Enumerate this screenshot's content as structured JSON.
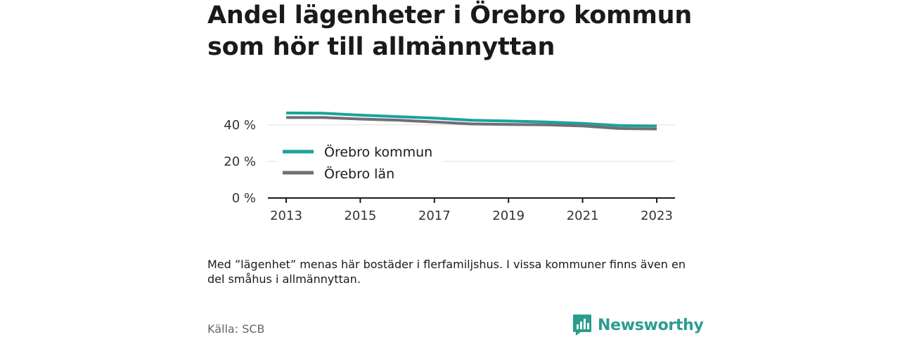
{
  "title": "Andel lägenheter i Örebro kommun som hör till allmännyttan",
  "note": "Med ”lägenhet” menas här bostäder i flerfamiljshus. I vissa kommuner finns även en del småhus i allmännyttan.",
  "source": "Källa: SCB",
  "logo": {
    "text": "Newsworthy",
    "icon": "bar-chart-speech-bubble-icon"
  },
  "colors": {
    "kommun": "#1aa39a",
    "lan": "#6e6e76",
    "grid": "#dddddd",
    "axis": "#1a1a1a",
    "logo": "#2a9d8f"
  },
  "chart_data": {
    "type": "line",
    "x": [
      2013,
      2014,
      2015,
      2016,
      2017,
      2018,
      2019,
      2020,
      2021,
      2022,
      2023
    ],
    "xticks": [
      "2013",
      "2015",
      "2017",
      "2019",
      "2021",
      "2023"
    ],
    "yticks": [
      "0 %",
      "20 %",
      "40 %"
    ],
    "ylim": [
      0,
      48
    ],
    "xlim": [
      2013,
      2023
    ],
    "grid": true,
    "legend_position": "inside-left",
    "series": [
      {
        "name": "Örebro kommun",
        "color": "#1aa39a",
        "values": [
          46.5,
          46.4,
          45.3,
          44.5,
          43.7,
          42.5,
          42.1,
          41.6,
          40.8,
          39.6,
          39.4
        ]
      },
      {
        "name": "Örebro län",
        "color": "#6e6e76",
        "values": [
          44.0,
          44.0,
          43.2,
          42.6,
          41.6,
          40.5,
          40.2,
          40.0,
          39.4,
          38.0,
          37.8
        ]
      }
    ]
  }
}
